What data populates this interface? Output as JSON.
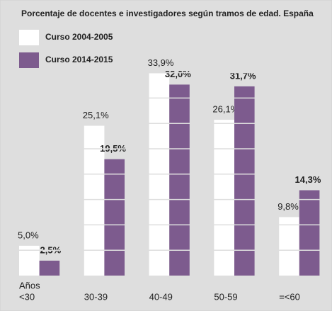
{
  "chart_data": {
    "type": "bar",
    "title": "Porcentaje de docentes e investigadores según tramos de edad. España",
    "x_label": "Años",
    "categories": [
      "<30",
      "30-39",
      "40-49",
      "50-59",
      "=<60"
    ],
    "series": [
      {
        "name": "Curso 2004-2005",
        "color": "#ffffff",
        "values": [
          5.0,
          25.1,
          33.9,
          26.1,
          9.8
        ],
        "value_labels": [
          "5,0%",
          "25,1%",
          "33,9%",
          "26,1%",
          "9,8%"
        ]
      },
      {
        "name": "Curso 2014-2015",
        "color": "#7d5b8e",
        "values": [
          2.5,
          19.5,
          32.0,
          31.7,
          14.3
        ],
        "value_labels": [
          "2,5%",
          "19,5%",
          "32,0%",
          "31,7%",
          "14,3%"
        ]
      }
    ],
    "ylim": [
      0,
      40
    ]
  }
}
